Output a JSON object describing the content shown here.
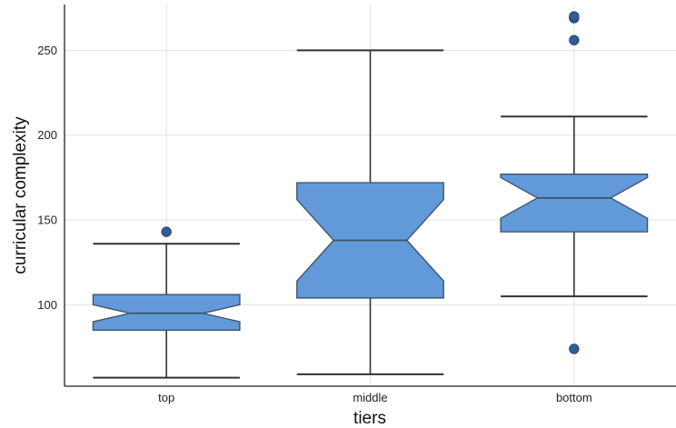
{
  "chart_data": {
    "type": "box",
    "xlabel": "tiers",
    "ylabel": "curricular complexity",
    "ylim": [
      52,
      277
    ],
    "yticks": [
      100,
      150,
      200,
      250
    ],
    "grid": true,
    "legend": "none",
    "box_color": "#6199d9",
    "outlier_color": "#2f5f96",
    "categories": [
      {
        "name": "top",
        "whisker_low": 57,
        "q1": 85,
        "median": 95,
        "q3": 106,
        "whisker_high": 136,
        "notch_low": 90,
        "notch_high": 100,
        "outliers": [
          143
        ]
      },
      {
        "name": "middle",
        "whisker_low": 59,
        "q1": 104,
        "median": 138,
        "q3": 172,
        "whisker_high": 250,
        "notch_low": 114,
        "notch_high": 162,
        "outliers": []
      },
      {
        "name": "bottom",
        "whisker_low": 105,
        "q1": 143,
        "median": 163,
        "q3": 177,
        "whisker_high": 211,
        "notch_low": 151,
        "notch_high": 175,
        "outliers": [
          74,
          256,
          269,
          270
        ]
      }
    ]
  }
}
